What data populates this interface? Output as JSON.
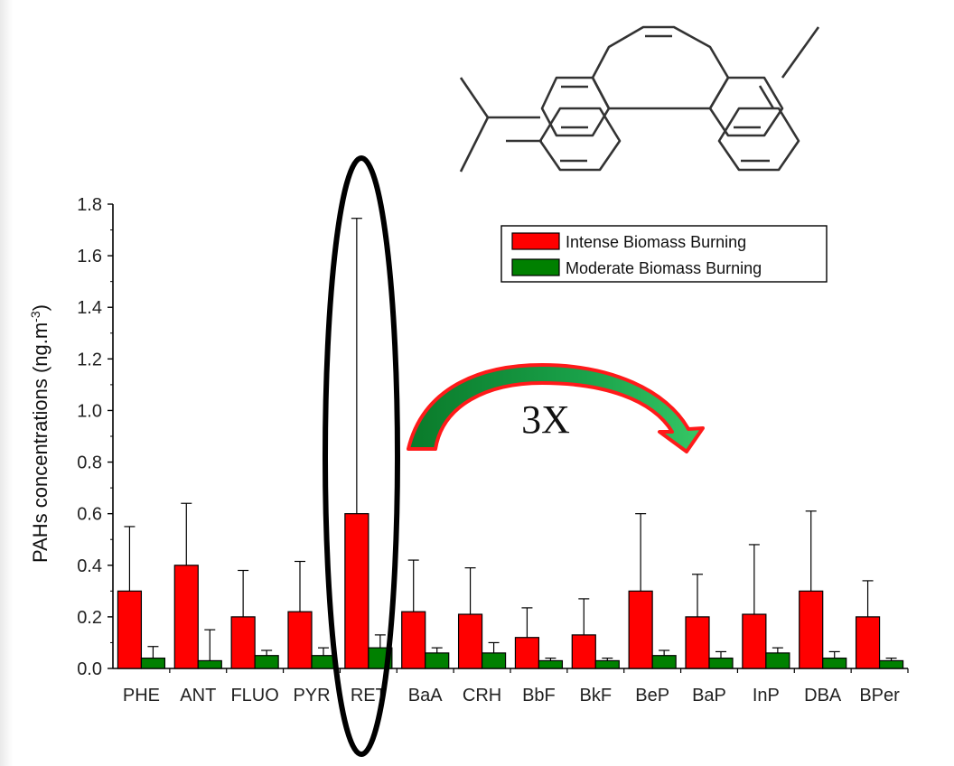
{
  "chart_data": {
    "type": "bar",
    "title": "",
    "xlabel": "",
    "ylabel": "PAHs concentrations (ng.m",
    "ylabel_superscript": "-3",
    "ylabel_suffix": ")",
    "ylim": [
      0.0,
      1.8
    ],
    "yticks": [
      "0.0",
      "0.2",
      "0.4",
      "0.6",
      "0.8",
      "1.0",
      "1.2",
      "1.4",
      "1.6",
      "1.8"
    ],
    "categories": [
      "PHE",
      "ANT",
      "FLUO",
      "PYR",
      "RET",
      "BaA",
      "CRH",
      "BbF",
      "BkF",
      "BeP",
      "BaP",
      "InP",
      "DBA",
      "BPer"
    ],
    "series": [
      {
        "name": "Intense Biomass Burning",
        "color": "#ff0000",
        "values": [
          0.3,
          0.4,
          0.2,
          0.22,
          0.6,
          0.22,
          0.21,
          0.12,
          0.13,
          0.3,
          0.2,
          0.21,
          0.3,
          0.2
        ],
        "error_upper": [
          0.55,
          0.64,
          0.38,
          0.415,
          1.745,
          0.42,
          0.39,
          0.235,
          0.27,
          0.6,
          0.365,
          0.48,
          0.61,
          0.34
        ]
      },
      {
        "name": "Moderate Biomass Burning",
        "color": "#008000",
        "values": [
          0.04,
          0.03,
          0.05,
          0.05,
          0.08,
          0.06,
          0.06,
          0.03,
          0.03,
          0.05,
          0.04,
          0.06,
          0.04,
          0.03
        ],
        "error_upper": [
          0.085,
          0.15,
          0.07,
          0.08,
          0.13,
          0.08,
          0.1,
          0.04,
          0.04,
          0.07,
          0.065,
          0.08,
          0.065,
          0.04
        ]
      }
    ],
    "legend_position": "top-right",
    "grid": false,
    "annotations": [
      {
        "text": "3X",
        "kind": "curved-arrow"
      }
    ],
    "highlight": {
      "category": "RET",
      "shape": "ellipse"
    },
    "inset": {
      "kind": "molecular-structure"
    }
  }
}
